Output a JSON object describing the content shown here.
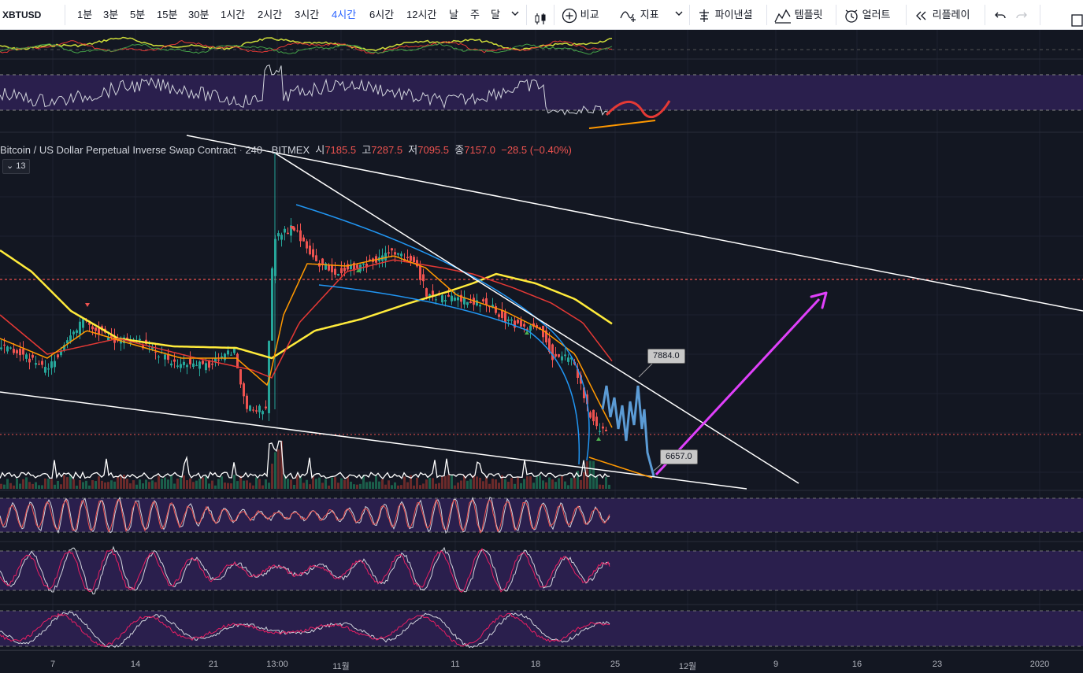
{
  "toolbar": {
    "symbol": "XBTUSD",
    "intervals": [
      "1분",
      "3분",
      "5분",
      "15분",
      "30분",
      "1시간",
      "2시간",
      "3시간",
      "4시간",
      "6시간",
      "12시간",
      "날",
      "주",
      "달"
    ],
    "active_interval": "4시간",
    "compare": "비교",
    "indicators": "지표",
    "pine": "파이낸셜",
    "templates": "템플릿",
    "alerts": "얼러트",
    "replay": "리플레이"
  },
  "legend": {
    "title": "Bitcoin / US Dollar Perpetual Inverse Swap Contract",
    "interval": "240",
    "exchange": "BITMEX",
    "open_label": "시",
    "open": "7185.5",
    "high_label": "고",
    "high": "7287.5",
    "low_label": "저",
    "low": "7095.5",
    "close_label": "종",
    "close": "7157.0",
    "change": "−28.5 (−0.40%)",
    "collapsed_count": "13"
  },
  "annotations": {
    "price_high": "7884.0",
    "price_low": "6657.0"
  },
  "xaxis": {
    "ticks": [
      "7",
      "14",
      "21",
      "13:00",
      "11월",
      "11",
      "18",
      "25",
      "12월",
      "9",
      "16",
      "23",
      "2020"
    ]
  },
  "colors": {
    "up": "#26a69a",
    "down": "#ef5350",
    "ma_fast": "#ff9800",
    "ma_slow": "#ffeb3b",
    "ma_mid": "#e53935",
    "projection": "#5b9bd5",
    "arrow": "#e040fb",
    "panel": "#2a1f4d"
  }
}
